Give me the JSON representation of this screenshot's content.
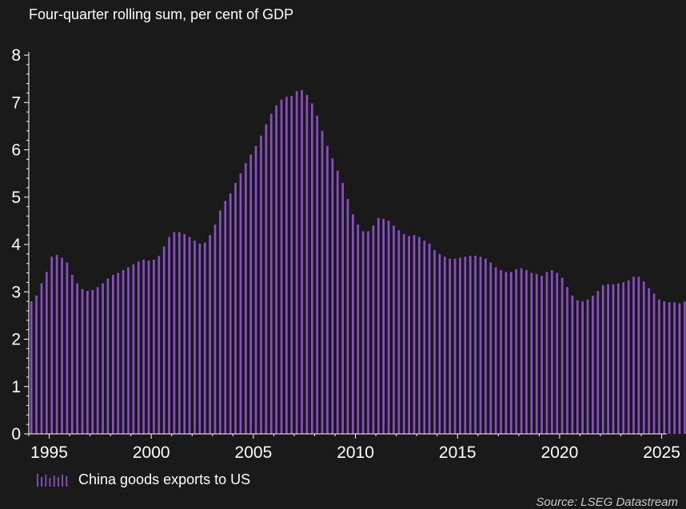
{
  "chart_data": {
    "type": "bar",
    "subtitle": "Four-quarter rolling sum, per cent of GDP",
    "title": "",
    "xlabel": "",
    "ylabel": "",
    "ylim": [
      0,
      8
    ],
    "y_ticks": [
      0,
      1,
      2,
      3,
      4,
      5,
      6,
      7,
      8
    ],
    "x_ticks": [
      "1995",
      "2000",
      "2005",
      "2010",
      "2015",
      "2020",
      "2025"
    ],
    "x_start": "1994 Q1",
    "x_end": "2025 Q1",
    "legend_position": "bottom-left",
    "bar_color": "#8a4fc8",
    "series": [
      {
        "name": "China goods exports to US",
        "values": [
          2.8,
          2.92,
          3.18,
          3.42,
          3.74,
          3.78,
          3.72,
          3.62,
          3.36,
          3.18,
          3.06,
          3.02,
          3.04,
          3.1,
          3.18,
          3.28,
          3.36,
          3.4,
          3.46,
          3.52,
          3.58,
          3.64,
          3.68,
          3.66,
          3.68,
          3.76,
          3.96,
          4.16,
          4.26,
          4.26,
          4.22,
          4.16,
          4.08,
          4.02,
          4.04,
          4.2,
          4.42,
          4.72,
          4.92,
          5.08,
          5.3,
          5.5,
          5.72,
          5.9,
          6.08,
          6.3,
          6.54,
          6.76,
          6.94,
          7.06,
          7.12,
          7.14,
          7.24,
          7.26,
          7.16,
          6.98,
          6.72,
          6.4,
          6.08,
          5.82,
          5.56,
          5.3,
          4.96,
          4.64,
          4.42,
          4.28,
          4.28,
          4.4,
          4.56,
          4.54,
          4.5,
          4.4,
          4.3,
          4.22,
          4.18,
          4.2,
          4.16,
          4.08,
          4.02,
          3.88,
          3.8,
          3.74,
          3.7,
          3.7,
          3.72,
          3.74,
          3.76,
          3.76,
          3.74,
          3.7,
          3.62,
          3.52,
          3.46,
          3.42,
          3.42,
          3.48,
          3.5,
          3.46,
          3.4,
          3.38,
          3.34,
          3.42,
          3.46,
          3.4,
          3.3,
          3.1,
          2.92,
          2.82,
          2.8,
          2.84,
          2.92,
          3.02,
          3.14,
          3.16,
          3.16,
          3.18,
          3.2,
          3.24,
          3.32,
          3.32,
          3.22,
          3.08,
          2.96,
          2.84,
          2.8,
          2.78,
          2.78,
          2.76,
          2.8
        ]
      }
    ]
  },
  "source": "Source: LSEG Datastream"
}
